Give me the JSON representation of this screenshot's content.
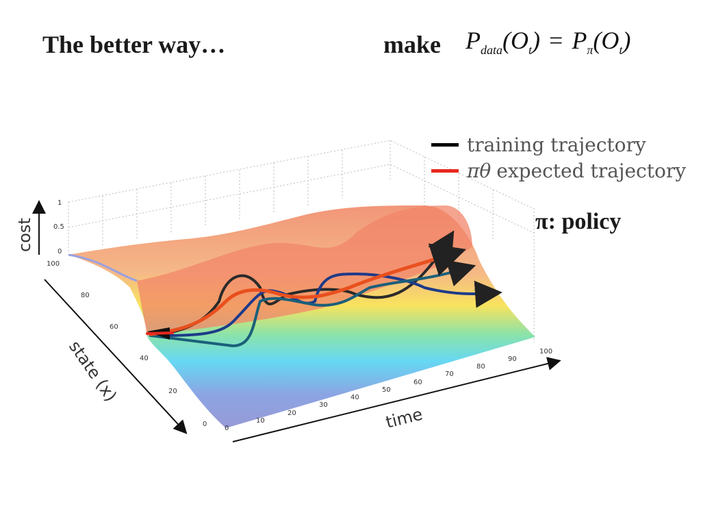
{
  "slide": {
    "title": "The better way…",
    "make_label": "make",
    "equation": {
      "lhs_symbol": "P",
      "lhs_subscript": "data",
      "lhs_arg": "(O",
      "lhs_arg_sub": "t",
      "lhs_close": ")",
      "operator": "=",
      "rhs_symbol": "P",
      "rhs_subscript": "π",
      "rhs_arg": "(O",
      "rhs_arg_sub": "t",
      "rhs_close": ")"
    },
    "policy_note": "π: policy"
  },
  "figure": {
    "legend": [
      {
        "symbol": "",
        "label": "training trajectory",
        "color": "#000000"
      },
      {
        "symbol": "πθ",
        "label": "expected trajectory",
        "color": "#e8281e"
      }
    ],
    "axes": {
      "cost_label": "cost",
      "state_label": "state (x)",
      "time_label": "time",
      "cost_ticks": [
        "0",
        "0.5",
        "1"
      ],
      "state_ticks": [
        "0",
        "20",
        "40",
        "60",
        "80",
        "100"
      ],
      "time_ticks": [
        "0",
        "10",
        "20",
        "30",
        "40",
        "50",
        "60",
        "70",
        "80",
        "90",
        "100"
      ]
    },
    "colors": {
      "surface_low": "#8a8fd6",
      "surface_mid": "#5fd6ff",
      "surface_high": "#f07a5a"
    }
  }
}
